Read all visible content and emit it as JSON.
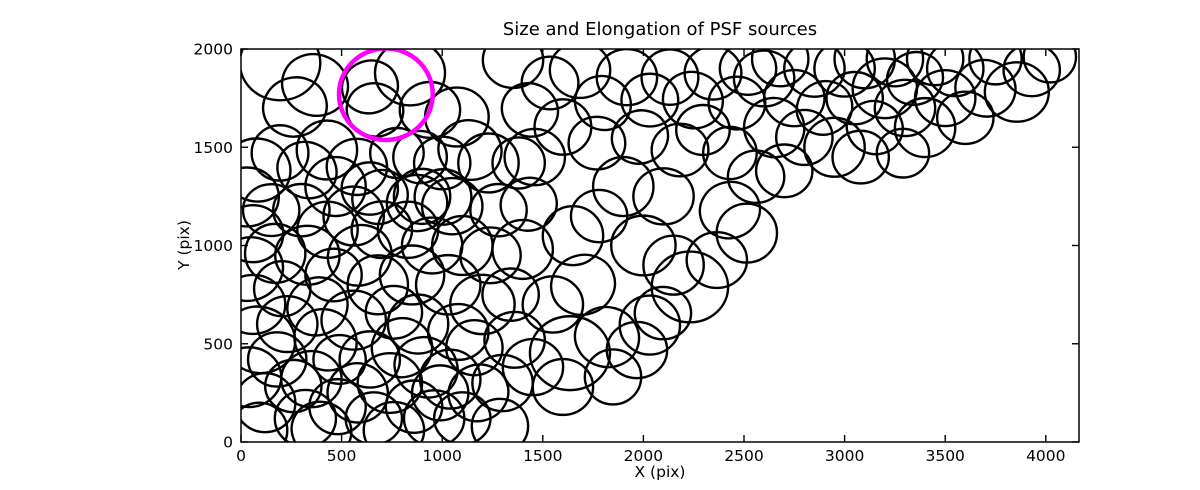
{
  "chart_data": {
    "type": "scatter",
    "title": "Size and Elongation of PSF sources",
    "xlabel": "X (pix)",
    "ylabel": "Y (pix)",
    "xlim": [
      0,
      4165
    ],
    "ylim": [
      0,
      2000
    ],
    "xticks": [
      0,
      500,
      1000,
      1500,
      2000,
      2500,
      3000,
      3500,
      4000
    ],
    "yticks": [
      0,
      500,
      1000,
      1500,
      2000
    ],
    "grid": false,
    "legend": "none",
    "marker_style": {
      "edge_color": "#000000",
      "fill": "none",
      "line_width": 2.4
    },
    "highlight_style": {
      "edge_color": "#ff00ff",
      "fill": "none",
      "line_width": 4.5
    },
    "axis_style": {
      "spine_color": "#000000",
      "tick_direction": "in",
      "tick_length": 7
    },
    "columns": [
      "cx",
      "cy",
      "rx",
      "ry",
      "rot_deg"
    ],
    "sources": [
      [
        194,
        1929,
        200,
        190,
        0
      ],
      [
        80,
        1384,
        166,
        160,
        10
      ],
      [
        30,
        1247,
        158,
        150,
        0
      ],
      [
        268,
        1705,
        159,
        150,
        -15
      ],
      [
        368,
        1817,
        165,
        155,
        20
      ],
      [
        194,
        1471,
        141,
        141,
        0
      ],
      [
        328,
        1384,
        150,
        140,
        30
      ],
      [
        427,
        1486,
        150,
        150,
        0
      ],
      [
        60,
        1060,
        150,
        145,
        0
      ],
      [
        150,
        1180,
        140,
        132,
        0
      ],
      [
        40,
        880,
        170,
        160,
        -20
      ],
      [
        170,
        960,
        150,
        150,
        0
      ],
      [
        60,
        700,
        160,
        150,
        0
      ],
      [
        205,
        780,
        140,
        140,
        0
      ],
      [
        90,
        520,
        180,
        168,
        15
      ],
      [
        230,
        600,
        150,
        142,
        0
      ],
      [
        40,
        330,
        160,
        152,
        0
      ],
      [
        180,
        420,
        145,
        138,
        0
      ],
      [
        120,
        200,
        150,
        150,
        0
      ],
      [
        260,
        285,
        140,
        133,
        0
      ],
      [
        320,
        120,
        152,
        145,
        0
      ],
      [
        90,
        60,
        140,
        140,
        0
      ],
      [
        400,
        60,
        150,
        143,
        25
      ],
      [
        330,
        950,
        160,
        150,
        0
      ],
      [
        430,
        1080,
        150,
        143,
        0
      ],
      [
        380,
        690,
        152,
        145,
        -30
      ],
      [
        300,
        1180,
        140,
        133,
        0
      ],
      [
        470,
        1300,
        150,
        150,
        0
      ],
      [
        460,
        850,
        140,
        134,
        0
      ],
      [
        420,
        520,
        160,
        150,
        40
      ],
      [
        350,
        320,
        150,
        143,
        0
      ],
      [
        480,
        180,
        140,
        140,
        0
      ],
      [
        490,
        420,
        130,
        124,
        0
      ],
      [
        576,
        1400,
        150,
        143,
        0
      ],
      [
        641,
        1807,
        140,
        133,
        -20
      ],
      [
        666,
        1690,
        141,
        135,
        15
      ],
      [
        775,
        1471,
        133,
        127,
        0
      ],
      [
        840,
        1878,
        174,
        165,
        0
      ],
      [
        890,
        1450,
        133,
        133,
        0
      ],
      [
        939,
        1690,
        150,
        142,
        0
      ],
      [
        560,
        1150,
        150,
        150,
        0
      ],
      [
        640,
        1290,
        140,
        133,
        0
      ],
      [
        700,
        1080,
        150,
        144,
        0
      ],
      [
        590,
        950,
        160,
        152,
        -25
      ],
      [
        680,
        800,
        150,
        150,
        0
      ],
      [
        560,
        620,
        160,
        150,
        0
      ],
      [
        640,
        420,
        150,
        143,
        0
      ],
      [
        580,
        250,
        150,
        150,
        20
      ],
      [
        660,
        120,
        140,
        133,
        0
      ],
      [
        760,
        60,
        150,
        143,
        0
      ],
      [
        740,
        300,
        160,
        152,
        0
      ],
      [
        800,
        480,
        150,
        150,
        -15
      ],
      [
        760,
        660,
        140,
        134,
        0
      ],
      [
        850,
        850,
        160,
        150,
        0
      ],
      [
        830,
        1080,
        150,
        143,
        0
      ],
      [
        900,
        1250,
        140,
        140,
        0
      ],
      [
        950,
        1000,
        150,
        142,
        0
      ],
      [
        880,
        600,
        150,
        150,
        0
      ],
      [
        920,
        380,
        160,
        150,
        30
      ],
      [
        860,
        180,
        140,
        133,
        0
      ],
      [
        960,
        120,
        150,
        143,
        0
      ],
      [
        990,
        250,
        140,
        140,
        0
      ],
      [
        1000,
        1420,
        140,
        134,
        0
      ],
      [
        875,
        1216,
        150,
        143,
        0
      ],
      [
        1004,
        1247,
        141,
        141,
        0
      ],
      [
        691,
        1247,
        141,
        134,
        -35
      ],
      [
        1073,
        1654,
        158,
        150,
        0
      ],
      [
        1138,
        1486,
        158,
        150,
        20
      ],
      [
        1050,
        1200,
        150,
        143,
        0
      ],
      [
        1100,
        1000,
        150,
        150,
        0
      ],
      [
        1030,
        800,
        160,
        151,
        0
      ],
      [
        1080,
        560,
        150,
        142,
        0
      ],
      [
        1040,
        320,
        150,
        150,
        0
      ],
      [
        1100,
        120,
        140,
        133,
        0
      ],
      [
        1180,
        250,
        150,
        143,
        -20
      ],
      [
        1160,
        480,
        140,
        140,
        0
      ],
      [
        1200,
        700,
        160,
        151,
        0
      ],
      [
        1240,
        950,
        150,
        142,
        0
      ],
      [
        1280,
        1180,
        140,
        133,
        0
      ],
      [
        1230,
        1420,
        150,
        150,
        0
      ],
      [
        1352,
        1944,
        150,
        142,
        0
      ],
      [
        1436,
        1690,
        141,
        134,
        25
      ],
      [
        1300,
        300,
        150,
        143,
        0
      ],
      [
        1287,
        80,
        140,
        140,
        0
      ],
      [
        1360,
        520,
        150,
        142,
        0
      ],
      [
        1340,
        750,
        140,
        133,
        0
      ],
      [
        1400,
        980,
        150,
        150,
        0
      ],
      [
        1430,
        1210,
        140,
        134,
        -15
      ],
      [
        1460,
        1450,
        150,
        143,
        0
      ],
      [
        1380,
        1420,
        130,
        130,
        0
      ],
      [
        1451,
        381,
        150,
        143,
        0
      ],
      [
        1635,
        452,
        199,
        188,
        0
      ],
      [
        1819,
        534,
        160,
        152,
        15
      ],
      [
        1968,
        468,
        150,
        143,
        0
      ],
      [
        2032,
        595,
        150,
        150,
        0
      ],
      [
        2097,
        656,
        140,
        133,
        0
      ],
      [
        1600,
        280,
        150,
        142,
        0
      ],
      [
        1849,
        331,
        140,
        140,
        0
      ],
      [
        1550,
        700,
        150,
        143,
        0
      ],
      [
        1700,
        800,
        160,
        151,
        -20
      ],
      [
        1650,
        1050,
        150,
        150,
        0
      ],
      [
        1536,
        1827,
        141,
        134,
        0
      ],
      [
        1685,
        1893,
        150,
        142,
        0
      ],
      [
        1600,
        1603,
        141,
        141,
        0
      ],
      [
        1769,
        1521,
        141,
        134,
        0
      ],
      [
        1799,
        1725,
        141,
        135,
        30
      ],
      [
        1918,
        1857,
        150,
        143,
        0
      ],
      [
        1900,
        1300,
        150,
        150,
        0
      ],
      [
        1780,
        1150,
        140,
        133,
        0
      ],
      [
        2000,
        1000,
        160,
        152,
        0
      ],
      [
        2032,
        1740,
        141,
        134,
        0
      ],
      [
        2132,
        1857,
        141,
        141,
        0
      ],
      [
        1983,
        1552,
        141,
        134,
        -25
      ],
      [
        2100,
        1250,
        150,
        143,
        0
      ],
      [
        2150,
        900,
        150,
        150,
        0
      ],
      [
        2231,
        789,
        190,
        180,
        0
      ],
      [
        2182,
        1486,
        141,
        134,
        0
      ],
      [
        2246,
        1740,
        150,
        142,
        20
      ],
      [
        2296,
        1588,
        133,
        127,
        0
      ],
      [
        2346,
        1878,
        141,
        135,
        0
      ],
      [
        2430,
        1471,
        133,
        133,
        0
      ],
      [
        2465,
        1725,
        141,
        134,
        0
      ],
      [
        2430,
        1180,
        150,
        143,
        -15
      ],
      [
        2514,
        1063,
        150,
        150,
        0
      ],
      [
        2560,
        1350,
        140,
        133,
        0
      ],
      [
        2600,
        1850,
        150,
        142,
        0
      ],
      [
        2650,
        1600,
        150,
        150,
        25
      ],
      [
        2700,
        1380,
        140,
        134,
        0
      ],
      [
        2750,
        1750,
        150,
        143,
        0
      ],
      [
        2800,
        1550,
        140,
        140,
        0
      ],
      [
        2365,
        926,
        150,
        142,
        0
      ],
      [
        2520,
        1900,
        140,
        133,
        0
      ],
      [
        2680,
        1950,
        140,
        140,
        0
      ],
      [
        2850,
        1900,
        150,
        143,
        0
      ],
      [
        2900,
        1700,
        140,
        134,
        -30
      ],
      [
        2950,
        1500,
        150,
        150,
        0
      ],
      [
        3000,
        1900,
        150,
        142,
        0
      ],
      [
        3050,
        1750,
        140,
        133,
        0
      ],
      [
        3100,
        1950,
        150,
        150,
        0
      ],
      [
        3150,
        1600,
        140,
        134,
        20
      ],
      [
        3200,
        1800,
        160,
        152,
        0
      ],
      [
        3250,
        1950,
        140,
        140,
        0
      ],
      [
        3300,
        1700,
        150,
        143,
        0
      ],
      [
        3350,
        1850,
        140,
        133,
        -20
      ],
      [
        3400,
        1600,
        150,
        150,
        0
      ],
      [
        3450,
        1950,
        140,
        134,
        0
      ],
      [
        3500,
        1750,
        150,
        142,
        0
      ],
      [
        3550,
        1900,
        140,
        140,
        0
      ],
      [
        3600,
        1650,
        140,
        133,
        0
      ],
      [
        3700,
        1800,
        150,
        143,
        15
      ],
      [
        3750,
        1950,
        130,
        130,
        0
      ],
      [
        3856,
        1781,
        159,
        151,
        0
      ],
      [
        3930,
        1893,
        140,
        133,
        0
      ],
      [
        4020,
        1960,
        130,
        130,
        0
      ],
      [
        3080,
        1450,
        140,
        134,
        0
      ],
      [
        3290,
        1470,
        130,
        124,
        0
      ]
    ],
    "highlighted_source": [
      720,
      1770,
      233,
      233,
      0
    ]
  }
}
